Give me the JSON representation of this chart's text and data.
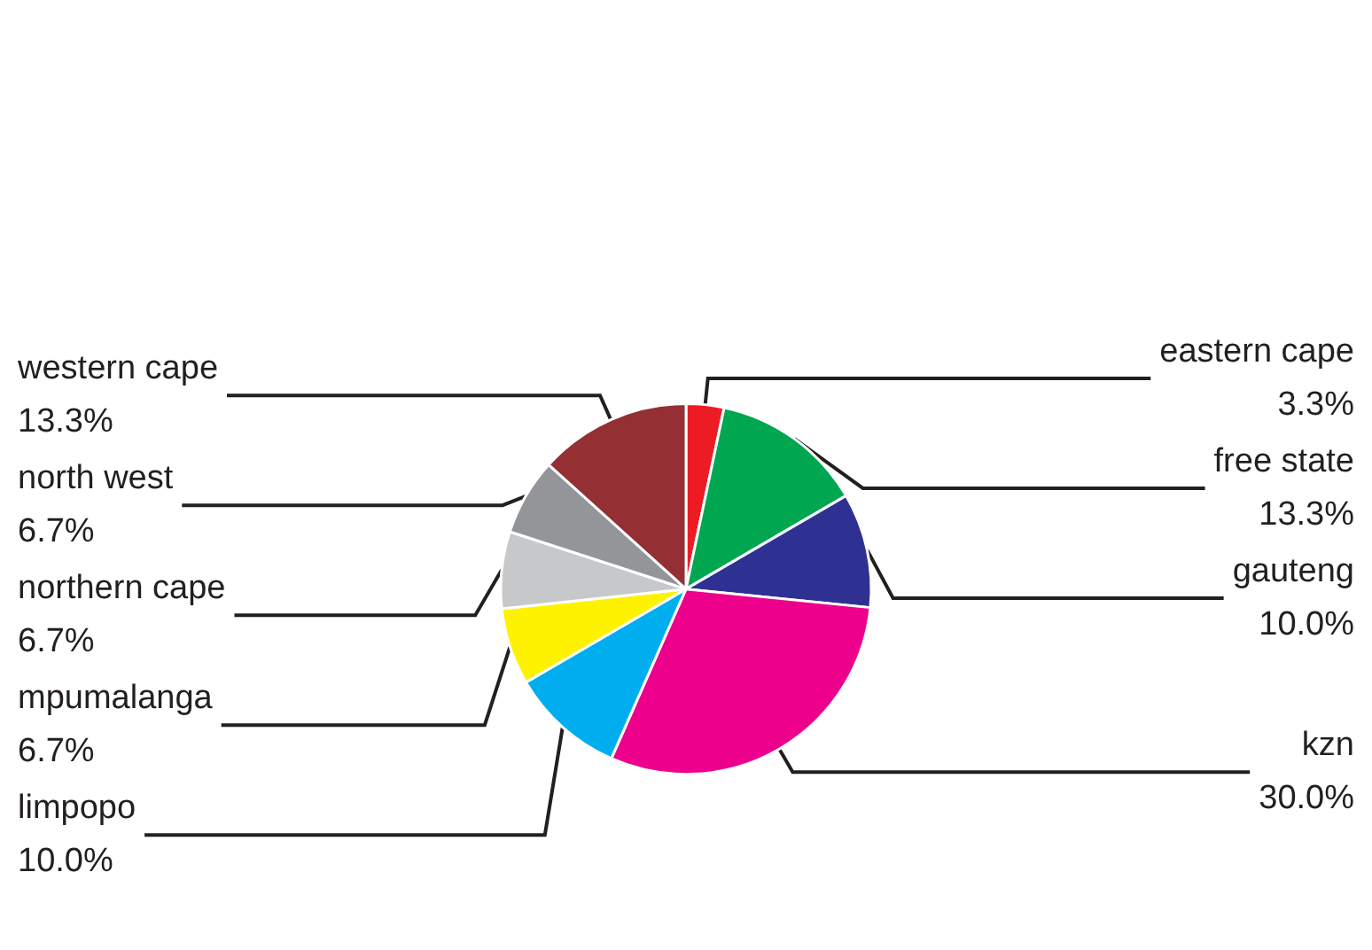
{
  "chart_data": {
    "type": "pie",
    "categories": [
      "eastern cape",
      "free state",
      "gauteng",
      "kzn",
      "limpopo",
      "mpumalanga",
      "northern cape",
      "north west",
      "western cape"
    ],
    "values": [
      3.3,
      13.3,
      10.0,
      30.0,
      10.0,
      6.7,
      6.7,
      6.7,
      13.3
    ],
    "value_labels": [
      "3.3%",
      "13.3%",
      "10.0%",
      "30.0%",
      "10.0%",
      "6.7%",
      "6.7%",
      "6.7%",
      "13.3%"
    ],
    "colors": [
      "#ed1c24",
      "#00a650",
      "#2e3192",
      "#ec008c",
      "#00aeef",
      "#fff200",
      "#c7c8ca",
      "#939598",
      "#942f33"
    ],
    "legend": false
  }
}
